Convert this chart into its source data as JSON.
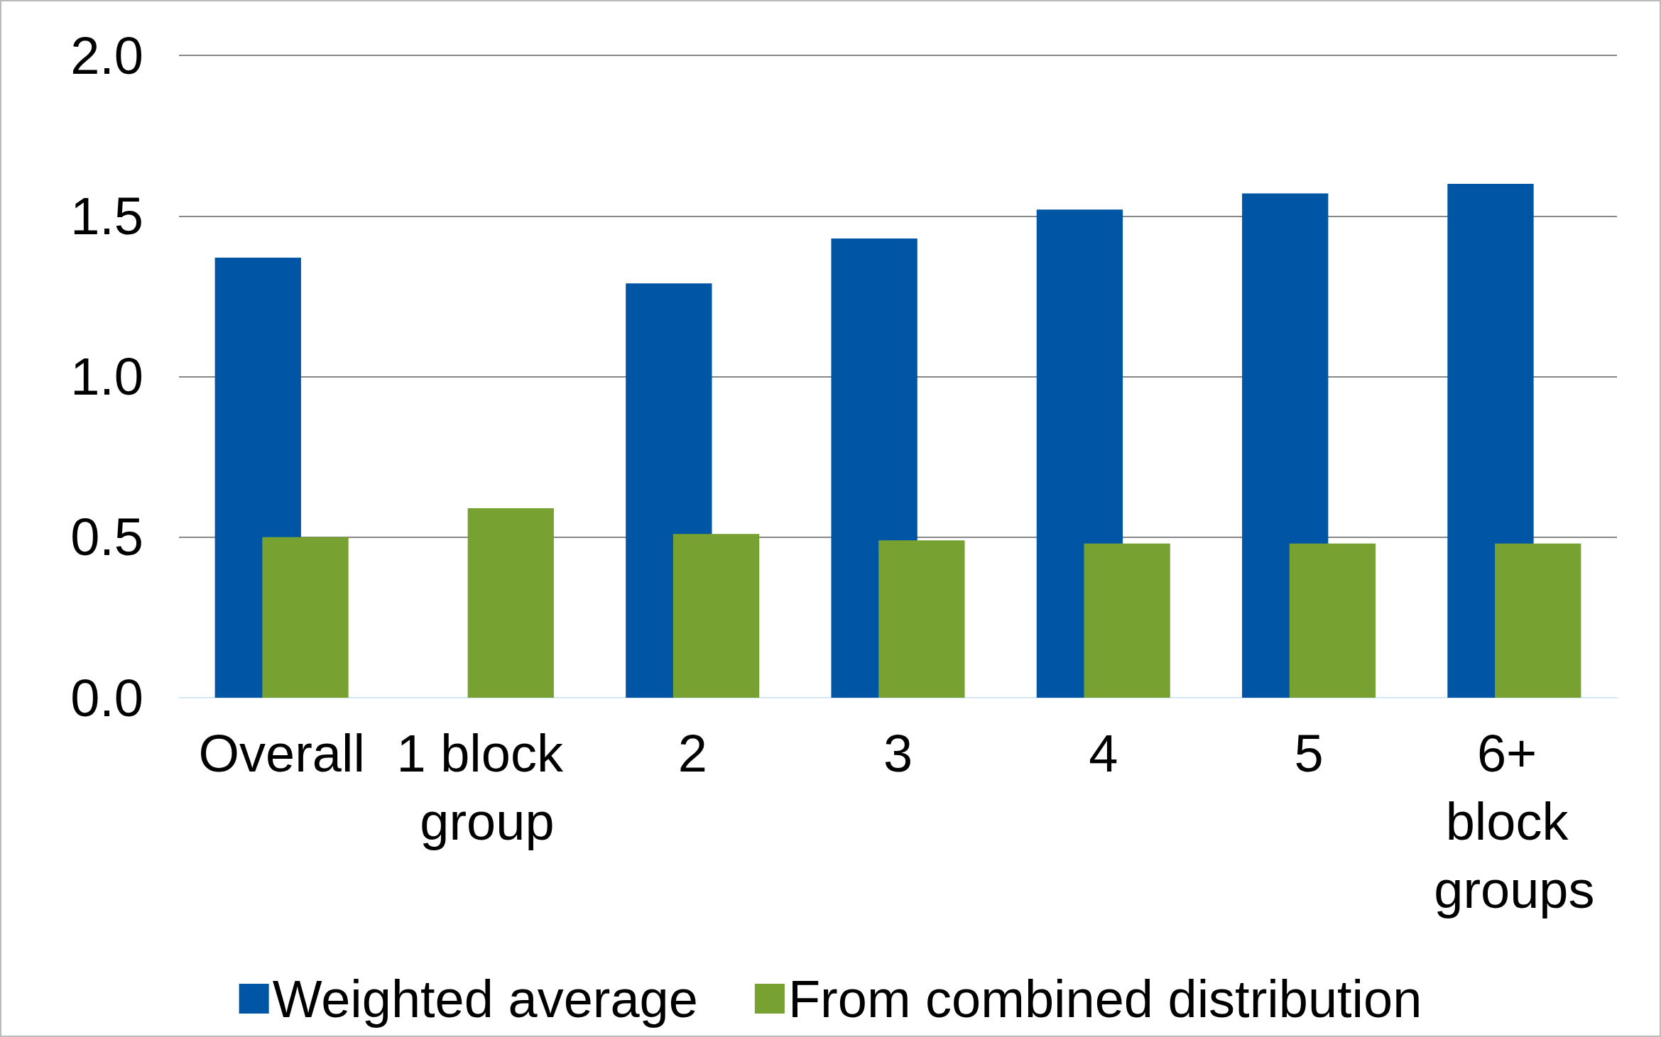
{
  "chart_data": {
    "type": "bar",
    "categories": [
      "Overall",
      "1 block group",
      "2",
      "3",
      "4",
      "5",
      "6+ block groups"
    ],
    "series": [
      {
        "name": "Weighted average",
        "color": "#0055a5",
        "values": [
          1.37,
          null,
          1.29,
          1.43,
          1.52,
          1.57,
          1.6
        ]
      },
      {
        "name": "From combined distribution",
        "color": "#77a232",
        "values": [
          0.5,
          0.59,
          0.51,
          0.49,
          0.48,
          0.48,
          0.48
        ]
      }
    ],
    "ylim": [
      0,
      2
    ],
    "yticks": [
      {
        "value": 0,
        "label": "0.0"
      },
      {
        "value": 0.5,
        "label": "0.5"
      },
      {
        "value": 1,
        "label": "1.0"
      },
      {
        "value": 1.5,
        "label": "1.5"
      },
      {
        "value": 2,
        "label": "2.0"
      }
    ],
    "grid": "y",
    "legend": "bottom"
  }
}
